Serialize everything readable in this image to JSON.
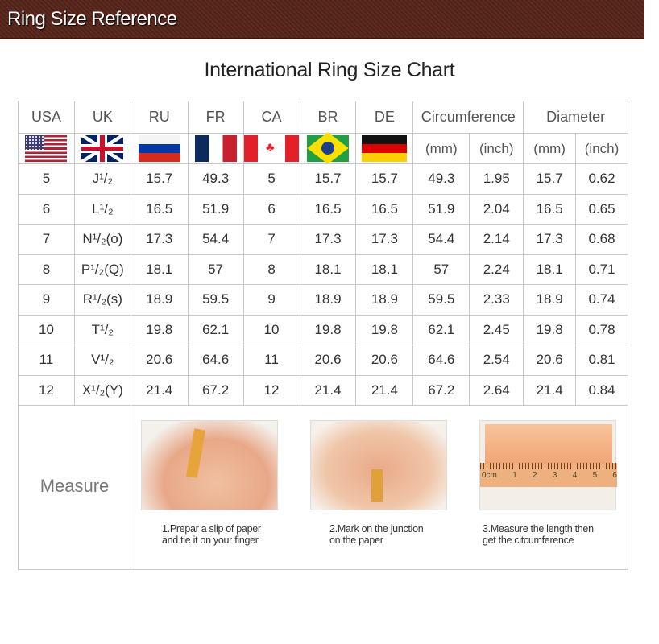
{
  "header": {
    "title": "Ring Size Reference"
  },
  "chart_title": "International Ring Size Chart",
  "columns": [
    "USA",
    "UK",
    "RU",
    "FR",
    "CA",
    "BR",
    "DE",
    "Circumference",
    "Diameter"
  ],
  "flags": [
    "usa-flag",
    "uk-flag",
    "russia-flag",
    "france-flag",
    "canada-flag",
    "brazil-flag",
    "germany-flag"
  ],
  "units": [
    "(mm)",
    "(inch)",
    "(mm)",
    "(inch)"
  ],
  "rows": [
    [
      "5",
      "J¹/₂",
      "15.7",
      "49.3",
      "5",
      "15.7",
      "15.7",
      "49.3",
      "1.95",
      "15.7",
      "0.62"
    ],
    [
      "6",
      "L¹/₂",
      "16.5",
      "51.9",
      "6",
      "16.5",
      "16.5",
      "51.9",
      "2.04",
      "16.5",
      "0.65"
    ],
    [
      "7",
      "N¹/₂(o)",
      "17.3",
      "54.4",
      "7",
      "17.3",
      "17.3",
      "54.4",
      "2.14",
      "17.3",
      "0.68"
    ],
    [
      "8",
      "P¹/₂(Q)",
      "18.1",
      "57",
      "8",
      "18.1",
      "18.1",
      "57",
      "2.24",
      "18.1",
      "0.71"
    ],
    [
      "9",
      "R¹/₂(s)",
      "18.9",
      "59.5",
      "9",
      "18.9",
      "18.9",
      "59.5",
      "2.33",
      "18.9",
      "0.74"
    ],
    [
      "10",
      "T¹/₂",
      "19.8",
      "62.1",
      "10",
      "19.8",
      "19.8",
      "62.1",
      "2.45",
      "19.8",
      "0.78"
    ],
    [
      "11",
      "V¹/₂",
      "20.6",
      "64.6",
      "11",
      "20.6",
      "20.6",
      "64.6",
      "2.54",
      "20.6",
      "0.81"
    ],
    [
      "12",
      "X¹/₂(Y)",
      "21.4",
      "67.2",
      "12",
      "21.4",
      "21.4",
      "67.2",
      "2.64",
      "21.4",
      "0.84"
    ]
  ],
  "measure": {
    "label": "Measure",
    "steps": [
      {
        "line1": "1.Prepar a slip of paper",
        "line2": "and tie it on your finger"
      },
      {
        "line1": "2.Mark on the junction",
        "line2": "on the paper"
      },
      {
        "line1": "3.Measure the length then",
        "line2": "get the citcumference"
      }
    ],
    "ruler_labels": [
      "0cm",
      "1",
      "2",
      "3",
      "4",
      "5",
      "6"
    ]
  }
}
